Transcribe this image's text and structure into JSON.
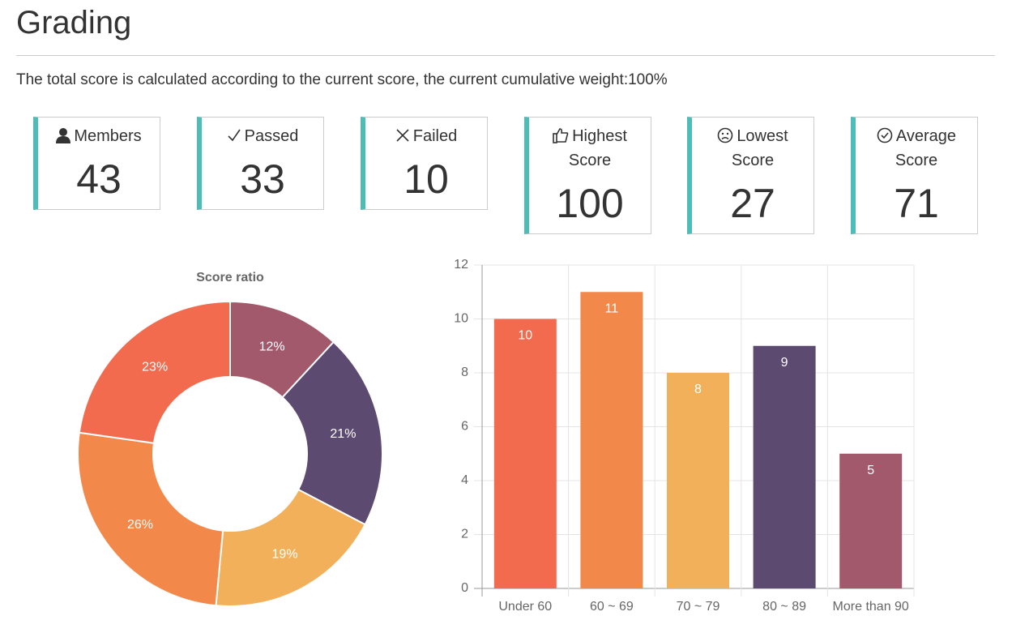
{
  "header": {
    "title": "Grading",
    "description": "The total score is calculated according to the current score, the current cumulative weight:100%"
  },
  "cards": [
    {
      "label": "Members",
      "value": 43
    },
    {
      "label": "Passed",
      "value": 33
    },
    {
      "label": "Failed",
      "value": 10
    },
    {
      "label": "Highest Score",
      "value": 100
    },
    {
      "label": "Lowest Score",
      "value": 27
    },
    {
      "label": "Average Score",
      "value": 71
    }
  ],
  "chart_data": [
    {
      "type": "pie",
      "title": "Score ratio",
      "donut": true,
      "values": [
        12,
        21,
        19,
        26,
        23
      ],
      "value_labels": [
        "12%",
        "21%",
        "19%",
        "26%",
        "23%"
      ],
      "colors": [
        "#a3596c",
        "#5c4a70",
        "#f2b05a",
        "#f2894b",
        "#f26b4f"
      ]
    },
    {
      "type": "bar",
      "categories": [
        "Under 60",
        "60 ~ 69",
        "70 ~ 79",
        "80 ~ 89",
        "More than 90"
      ],
      "values": [
        10,
        11,
        8,
        9,
        5
      ],
      "colors": [
        "#f26b4f",
        "#f2894b",
        "#f2b05a",
        "#5c4a70",
        "#a3596c"
      ],
      "ylim": [
        0,
        12
      ],
      "yticks": [
        0,
        2,
        4,
        6,
        8,
        10,
        12
      ],
      "grid": true
    }
  ]
}
